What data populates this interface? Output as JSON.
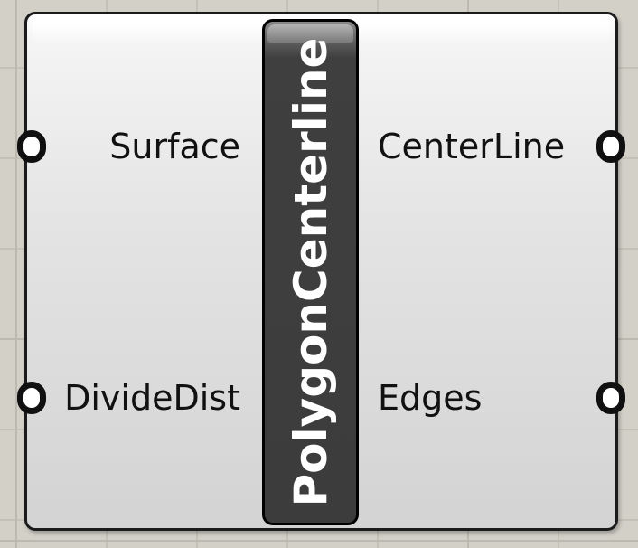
{
  "component": {
    "name": "PolygonCenterline",
    "inputs": [
      {
        "label": "Surface"
      },
      {
        "label": "DivideDist"
      }
    ],
    "outputs": [
      {
        "label": "CenterLine"
      },
      {
        "label": "Edges"
      }
    ]
  }
}
